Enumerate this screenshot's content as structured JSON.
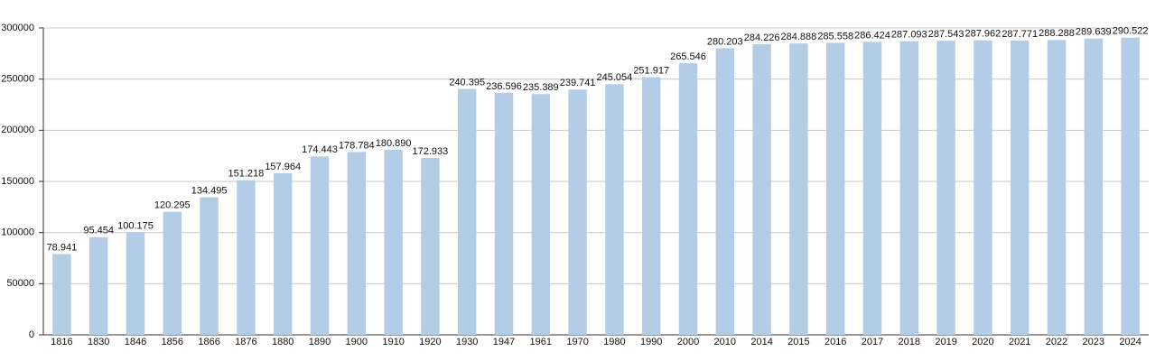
{
  "chart_data": {
    "type": "bar",
    "categories": [
      "1816",
      "1830",
      "1846",
      "1856",
      "1866",
      "1876",
      "1880",
      "1890",
      "1900",
      "1910",
      "1920",
      "1930",
      "1947",
      "1961",
      "1970",
      "1980",
      "1990",
      "2000",
      "2010",
      "2014",
      "2015",
      "2016",
      "2017",
      "2018",
      "2019",
      "2020",
      "2021",
      "2022",
      "2023",
      "2024"
    ],
    "values": [
      78941,
      95454,
      100175,
      120295,
      134495,
      151218,
      157964,
      174443,
      178784,
      180890,
      172933,
      240395,
      236596,
      235389,
      239741,
      245054,
      251917,
      265546,
      280203,
      284226,
      284888,
      285558,
      286424,
      287093,
      287543,
      287962,
      287771,
      288288,
      289639,
      290522
    ],
    "value_labels": [
      "78.941",
      "95.454",
      "100.175",
      "120.295",
      "134.495",
      "151.218",
      "157.964",
      "174.443",
      "178.784",
      "180.890",
      "172.933",
      "240.395",
      "236.596",
      "235.389",
      "239.741",
      "245.054",
      "251.917",
      "265.546",
      "280.203",
      "284.226",
      "284.888",
      "285.558",
      "286.424",
      "287.093",
      "287.543",
      "287.962",
      "287.771",
      "288.288",
      "289.639",
      "290.522"
    ],
    "color": "#b3cde6",
    "ylim": [
      0,
      300000
    ],
    "yticks": [
      0,
      50000,
      100000,
      150000,
      200000,
      250000,
      300000
    ],
    "grid": true
  }
}
